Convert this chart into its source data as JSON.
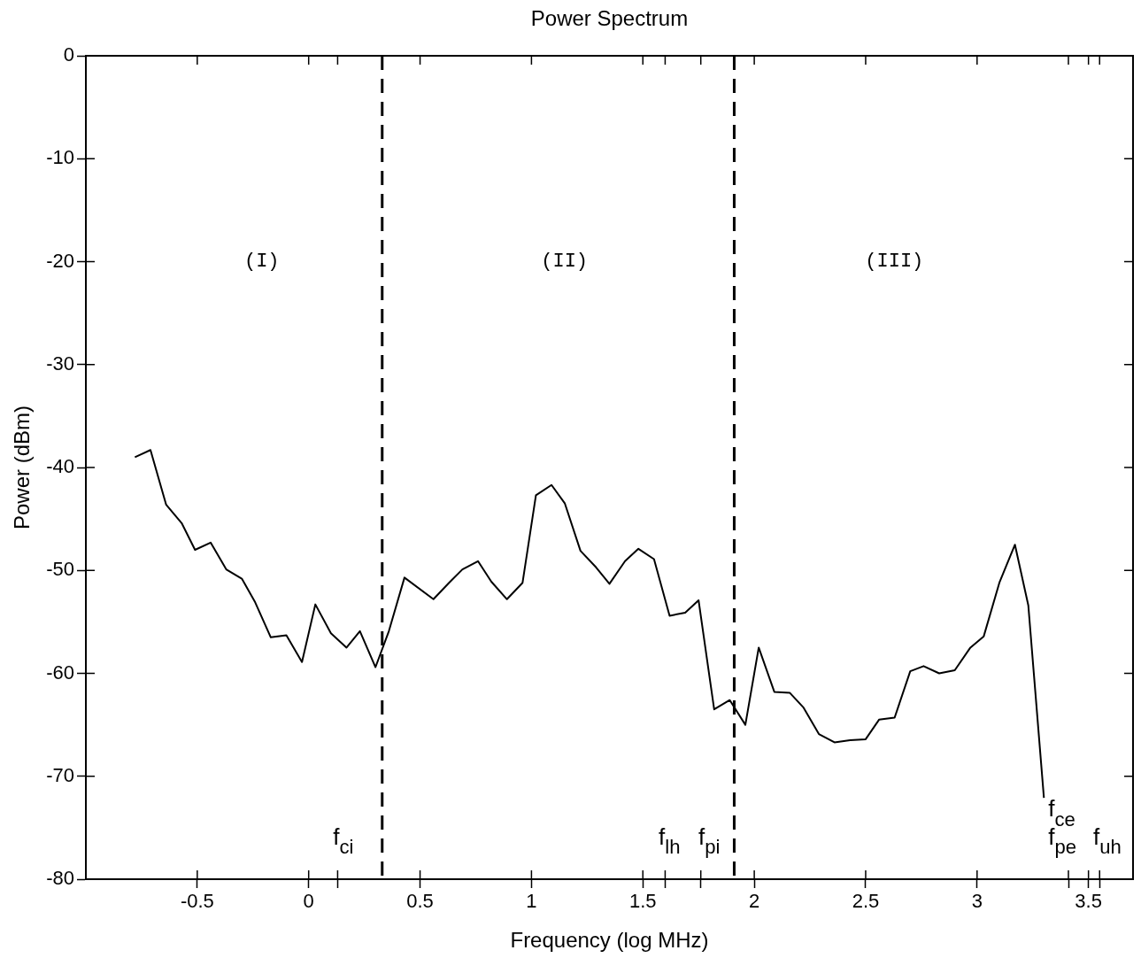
{
  "chart_data": {
    "type": "line",
    "title": "Power Spectrum",
    "xlabel": "Frequency (log MHz)",
    "ylabel": "Power (dBm)",
    "xlim": [
      -1,
      3.7
    ],
    "ylim": [
      -80,
      0
    ],
    "xticks": [
      {
        "value": -0.5,
        "label": "-0.5"
      },
      0,
      {
        "value": 0.13,
        "label": null
      },
      0.5,
      1,
      1.5,
      {
        "value": 1.6,
        "label": null
      },
      {
        "value": 1.76,
        "label": null
      },
      2,
      2.5,
      3,
      {
        "value": 3.41,
        "label": null
      },
      3.5,
      {
        "value": 3.55,
        "label": null
      }
    ],
    "yticks": [
      -80,
      -70,
      -60,
      -50,
      -40,
      -30,
      -20,
      -10,
      0
    ],
    "grid": false,
    "legend": false,
    "marker": "none",
    "line_style": "solid",
    "series": [
      {
        "color": "#000000",
        "x": [
          -0.78,
          -0.71,
          -0.64,
          -0.57,
          -0.51,
          -0.44,
          -0.37,
          -0.3,
          -0.24,
          -0.17,
          -0.1,
          -0.03,
          0.03,
          0.1,
          0.17,
          0.23,
          0.3,
          0.36,
          0.43,
          0.56,
          0.63,
          0.69,
          0.76,
          0.82,
          0.89,
          0.96,
          1.02,
          1.09,
          1.15,
          1.22,
          1.29,
          1.35,
          1.42,
          1.48,
          1.55,
          1.62,
          1.69,
          1.75,
          1.82,
          1.89,
          1.96,
          2.02,
          2.09,
          2.16,
          2.22,
          2.29,
          2.36,
          2.43,
          2.5,
          2.56,
          2.63,
          2.7,
          2.76,
          2.83,
          2.9,
          2.97,
          3.03,
          3.1,
          3.17,
          3.23,
          3.3
        ],
        "values": [
          -39,
          -38.3,
          -43.6,
          -45.4,
          -48,
          -47.3,
          -49.9,
          -50.8,
          -53.1,
          -56.5,
          -56.3,
          -58.9,
          -53.3,
          -56.1,
          -57.5,
          -55.9,
          -59.4,
          -55.9,
          -50.7,
          -52.8,
          -51.2,
          -49.9,
          -49.1,
          -51.1,
          -52.8,
          -51.2,
          -42.7,
          -41.7,
          -43.5,
          -48.1,
          -49.7,
          -51.3,
          -49.1,
          -47.9,
          -48.9,
          -54.4,
          -54.1,
          -52.9,
          -63.5,
          -62.6,
          -65,
          -57.5,
          -61.8,
          -61.9,
          -63.3,
          -65.9,
          -66.7,
          -66.5,
          -66.4,
          -64.5,
          -64.3,
          -59.8,
          -59.3,
          -60,
          -59.7,
          -57.5,
          -56.4,
          -51.2,
          -47.5,
          -53.4,
          -72.1
        ]
      }
    ],
    "ref_lines": [
      {
        "axis": "x",
        "value": 0.33,
        "line_style": "dashed",
        "color": "#000000"
      },
      {
        "axis": "x",
        "value": 1.91,
        "line_style": "dashed",
        "color": "#000000"
      }
    ],
    "annotations": [
      "(I)",
      "(II)",
      "(III)",
      "f$_{ci}$",
      "f$_{lh}$",
      "f$_{pi}$",
      "f$_{ce}$",
      "f$_{pe}$",
      "f$_{uh}$"
    ]
  }
}
